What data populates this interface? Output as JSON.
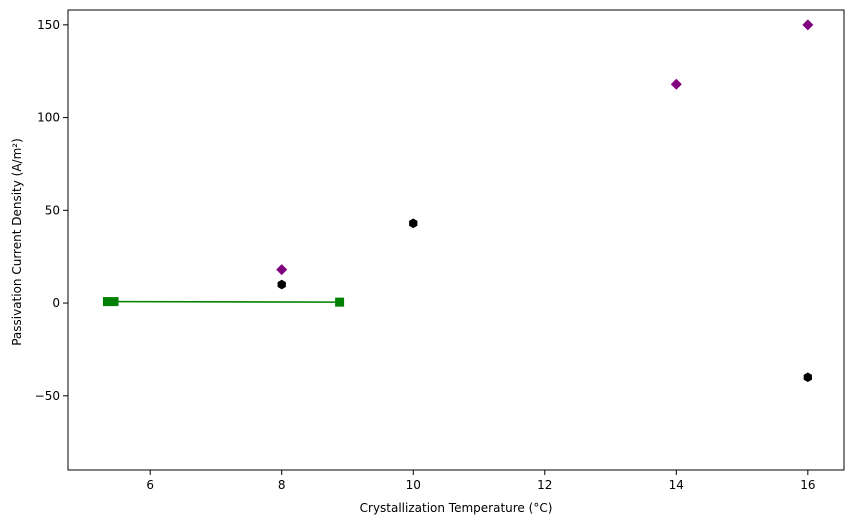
{
  "chart_data": {
    "type": "scatter",
    "title": "",
    "xlabel": "Crystallization Temperature (°C)",
    "ylabel": "Passivation Current Density (A/m²)",
    "xlim": [
      4.75,
      16.55
    ],
    "ylim": [
      -90,
      158
    ],
    "xticks": [
      6,
      8,
      10,
      12,
      14,
      16
    ],
    "yticks": [
      -50,
      0,
      50,
      100,
      150
    ],
    "grid": false,
    "legend": "none",
    "series": [
      {
        "marker": "diamond",
        "color": "#800080",
        "line": false,
        "points": [
          [
            8,
            18
          ],
          [
            14,
            118
          ],
          [
            16,
            150
          ]
        ]
      },
      {
        "marker": "hexagon",
        "color": "#000000",
        "line": false,
        "points": [
          [
            8,
            10
          ],
          [
            10,
            43
          ],
          [
            16,
            -40
          ]
        ]
      },
      {
        "marker": "square",
        "color": "#008000",
        "line": true,
        "points": [
          [
            5.35,
            0.8
          ],
          [
            5.45,
            0.8
          ],
          [
            8.88,
            0.5
          ]
        ]
      }
    ]
  }
}
